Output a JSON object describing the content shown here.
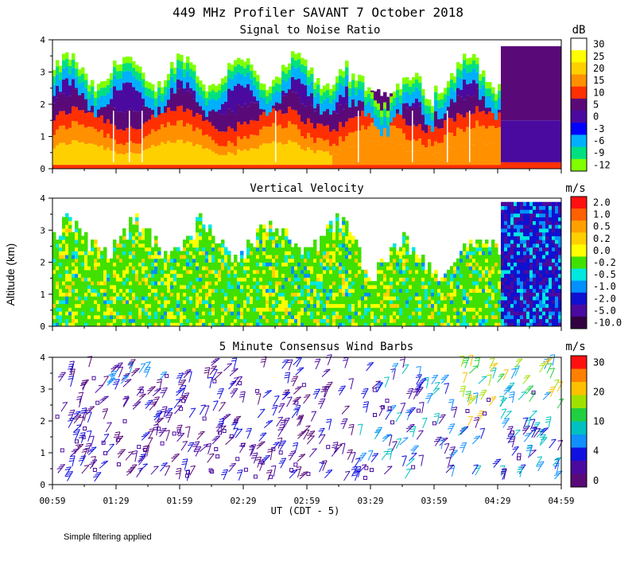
{
  "title": "449 MHz Profiler SAVANT  7 October 2018",
  "ylabel": "Altitude (km)",
  "xlabel": "UT (CDT - 5)",
  "footnote": "Simple filtering applied",
  "x_ticks": [
    "00:59",
    "01:29",
    "01:59",
    "02:29",
    "02:59",
    "03:29",
    "03:59",
    "04:29",
    "04:59"
  ],
  "y_ticks": [
    "0",
    "1",
    "2",
    "3",
    "4"
  ],
  "chart_data": [
    {
      "type": "heatmap",
      "title": "Signal to Noise Ratio",
      "unit": "dB",
      "x_range": [
        "00:59",
        "04:59"
      ],
      "ylim": [
        0,
        4
      ],
      "colorbar": {
        "labels": [
          "30",
          "25",
          "20",
          "15",
          "10",
          "5",
          "0",
          "-3",
          "-6",
          "-9",
          "-12"
        ],
        "colors": [
          "#ffffff",
          "#ffff00",
          "#ffd000",
          "#ff9000",
          "#ff3000",
          "#5a0a78",
          "#4a0aa0",
          "#0000ff",
          "#00b0ff",
          "#00e080",
          "#80ff00"
        ]
      },
      "profile_layers": [
        {
          "from_km": 0.0,
          "to_km": 0.15,
          "level": "10"
        },
        {
          "from_km": 0.15,
          "to_km": 1.2,
          "level": "15 to 25"
        },
        {
          "from_km": 1.2,
          "to_km": 1.6,
          "level": "10"
        },
        {
          "from_km": 1.6,
          "to_km": 2.3,
          "level": "0 to 5"
        },
        {
          "from_km": 2.3,
          "to_km": 2.7,
          "level": "-6 to -3"
        },
        {
          "from_km": 2.7,
          "to_km": 3.2,
          "level": "-12 to -9"
        }
      ]
    },
    {
      "type": "heatmap",
      "title": "Vertical Velocity",
      "unit": "m/s",
      "x_range": [
        "00:59",
        "04:59"
      ],
      "ylim": [
        0,
        4
      ],
      "colorbar": {
        "labels": [
          "2.0",
          "1.0",
          "0.5",
          "0.2",
          "0.0",
          "-0.2",
          "-0.5",
          "-1.0",
          "-2.0",
          "-5.0",
          "-10.0"
        ],
        "colors": [
          "#ff1010",
          "#ff6000",
          "#ffa000",
          "#ffd000",
          "#ffff00",
          "#40e000",
          "#00e8e0",
          "#0090ff",
          "#1010d0",
          "#4a0aa0",
          "#300040"
        ]
      },
      "dominant_level": "-0.2 to 0.0",
      "late_period_level": "-5.0 to -1.0"
    },
    {
      "type": "barbs",
      "title": "5 Minute Consensus Wind Barbs",
      "unit": "m/s",
      "x_range": [
        "00:59",
        "04:59"
      ],
      "ylim": [
        0,
        4
      ],
      "colorbar": {
        "labels": [
          "30",
          "20",
          "10",
          "4",
          "0"
        ],
        "colors": [
          "#ff1010",
          "#ff8000",
          "#ffc000",
          "#a0e000",
          "#20d040",
          "#00c0c0",
          "#1090ff",
          "#1010e0",
          "#4a0aa0",
          "#5a0a78"
        ]
      }
    }
  ]
}
